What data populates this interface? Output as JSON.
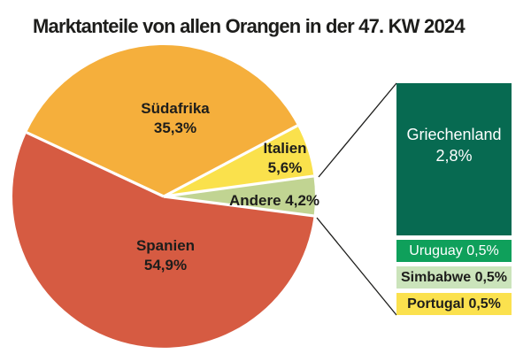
{
  "page": {
    "background": "#FFFFFF",
    "text_color": "#1D1D1B"
  },
  "chart_data": {
    "type": "pie",
    "title": "Marktanteile von allen Orangen in der 47. KW 2024",
    "title_color": "#1D1D1B",
    "unit": "%",
    "start_angle_deg": 155,
    "direction": "clockwise",
    "separator_color": "#FFFFFF",
    "legend_position": "none",
    "series": [
      {
        "label": "Südafrika",
        "value": 35.3,
        "display": "35,3%",
        "color": "#F5AF3C",
        "label_color": "#1D1D1B"
      },
      {
        "label": "Italien",
        "value": 5.6,
        "display": "5,6%",
        "color": "#FAE14C",
        "label_color": "#1D1D1B"
      },
      {
        "label": "Andere",
        "value": 4.2,
        "display": "4,2%",
        "color": "#C1D492",
        "label_color": "#1D1D1B"
      },
      {
        "label": "Spanien",
        "value": 54.9,
        "display": "54,9%",
        "color": "#D65B42",
        "label_color": "#1D1D1B"
      }
    ],
    "breakout": {
      "of": "Andere",
      "items": [
        {
          "label": "Griechenland",
          "value": 2.8,
          "display": "2,8%",
          "color": "#076A51",
          "text_color": "#FFFFFF"
        },
        {
          "label": "Uruguay",
          "value": 0.5,
          "display": "0,5%",
          "color": "#0FA05B",
          "text_color": "#FFFFFF"
        },
        {
          "label": "Simbabwe",
          "value": 0.5,
          "display": "0,5%",
          "color": "#CBE4BB",
          "text_color": "#1D1D1B"
        },
        {
          "label": "Portugal",
          "value": 0.5,
          "display": "0,5%",
          "color": "#FBE14E",
          "text_color": "#1D1D1B"
        }
      ]
    }
  }
}
